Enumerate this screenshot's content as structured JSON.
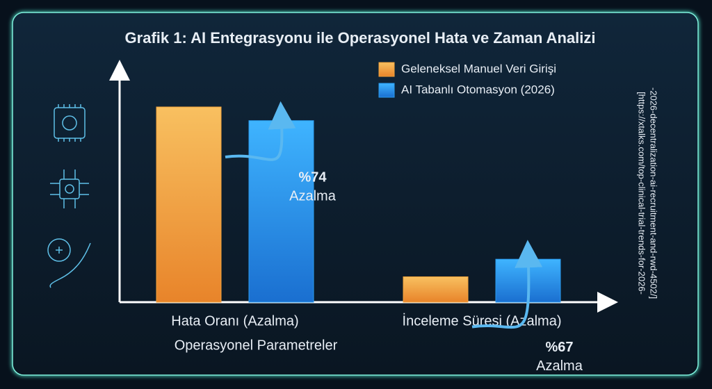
{
  "chart_data": {
    "type": "bar",
    "title": "Grafik 1: AI Entegrasyonu ile Operasyonel Hata ve Zaman Analizi",
    "x_label": "Operasyonel Parametreler",
    "categories": [
      "Hata Oranı (Azalma)",
      "İnceleme Süresi (Azalma)"
    ],
    "series": [
      {
        "name": "Geleneksel Manuel Veri Girişi",
        "color": "#f0a23c",
        "values": [
          100,
          13
        ]
      },
      {
        "name": "AI Tabanlı Otomasyon (2026)",
        "color": "#2a9cf0",
        "values": [
          93,
          22
        ]
      }
    ],
    "ylim": [
      0,
      121
    ],
    "legend": "top-right",
    "annotations": [
      [
        "%74",
        "Azalma"
      ],
      [
        "%67",
        "Azalma"
      ]
    ],
    "source": [
      "[https://xtalks.com/top-clinical-trial-trends-for-2026-",
      "-2026-decentralization-ai-recruitment-and-rwd-4502/]"
    ]
  }
}
